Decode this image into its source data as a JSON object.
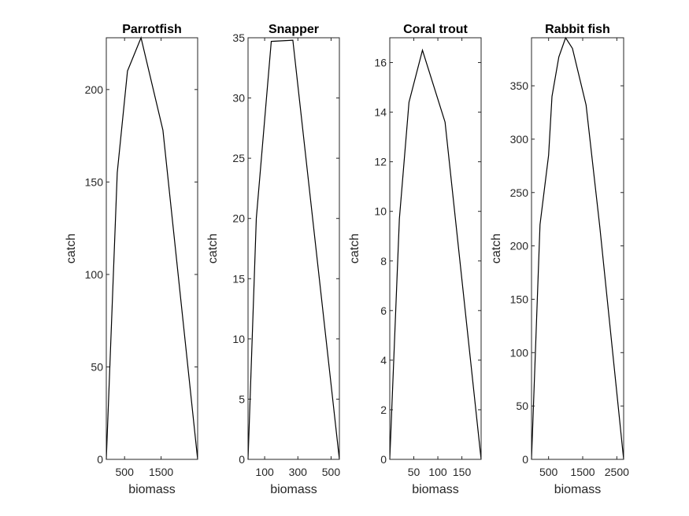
{
  "colors": {
    "axis": "#262626",
    "line": "#000000",
    "background": "#ffffff"
  },
  "chart_data": [
    {
      "type": "line",
      "title": "Parrotfish",
      "xlabel": "biomass",
      "ylabel": "catch",
      "xlim": [
        0,
        2500
      ],
      "ylim": [
        0,
        228
      ],
      "xticks": [
        500,
        1500
      ],
      "yticks": [
        0,
        50,
        100,
        150,
        200
      ],
      "grid": false,
      "series": [
        {
          "x": [
            0,
            300,
            580,
            950,
            1550,
            2500
          ],
          "y": [
            0,
            155,
            210,
            228,
            178,
            0
          ]
        }
      ]
    },
    {
      "type": "line",
      "title": "Snapper",
      "xlabel": "biomass",
      "ylabel": "catch",
      "xlim": [
        0,
        550
      ],
      "ylim": [
        0,
        35
      ],
      "xticks": [
        100,
        300,
        500
      ],
      "yticks": [
        0,
        5,
        10,
        15,
        20,
        25,
        30,
        35
      ],
      "grid": false,
      "series": [
        {
          "x": [
            0,
            50,
            140,
            270,
            550
          ],
          "y": [
            0,
            20,
            34.7,
            34.8,
            0
          ]
        }
      ]
    },
    {
      "type": "line",
      "title": "Coral trout",
      "xlabel": "biomass",
      "ylabel": "catch",
      "xlim": [
        0,
        190
      ],
      "ylim": [
        0,
        17
      ],
      "xticks": [
        50,
        100,
        150
      ],
      "yticks": [
        0,
        2,
        4,
        6,
        8,
        10,
        12,
        14,
        16
      ],
      "grid": false,
      "series": [
        {
          "x": [
            0,
            20,
            40,
            68,
            115,
            190
          ],
          "y": [
            0,
            9.7,
            14.4,
            16.5,
            13.6,
            0
          ]
        }
      ]
    },
    {
      "type": "line",
      "title": "Rabbit fish",
      "xlabel": "biomass",
      "ylabel": "catch",
      "xlim": [
        0,
        2700
      ],
      "ylim": [
        0,
        395
      ],
      "xticks": [
        500,
        1500,
        2500
      ],
      "yticks": [
        0,
        50,
        100,
        150,
        200,
        250,
        300,
        350
      ],
      "grid": false,
      "series": [
        {
          "x": [
            0,
            250,
            500,
            600,
            800,
            1000,
            1200,
            1600,
            2000,
            2700
          ],
          "y": [
            0,
            220,
            285,
            340,
            377,
            395,
            385,
            332,
            218,
            0
          ]
        }
      ]
    }
  ]
}
